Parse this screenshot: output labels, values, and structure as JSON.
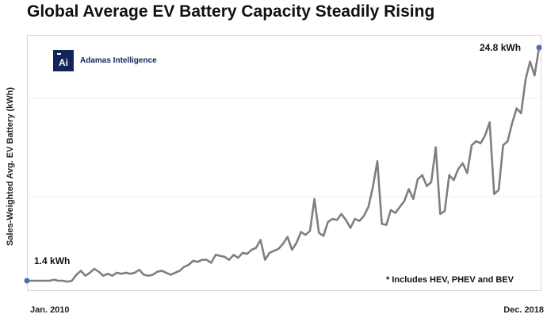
{
  "chart_data": {
    "type": "line",
    "title": "Global Average EV Battery Capacity Steadily Rising",
    "ylabel": "Sales-Weighted Avg. EV Battery (kWh)",
    "xlabel": "",
    "x_tick_labels": [
      "Jan. 2010",
      "Dec. 2018"
    ],
    "ylim": [
      0,
      26
    ],
    "grid": true,
    "annotations": {
      "start": "1.4 kWh",
      "end": "24.8 kWh",
      "note": "* Includes HEV, PHEV and BEV"
    },
    "series": [
      {
        "values": [
          1.4,
          1.4,
          1.4,
          1.4,
          1.4,
          1.4,
          1.5,
          1.4,
          1.4,
          1.3,
          1.4,
          2.0,
          2.4,
          1.9,
          2.2,
          2.6,
          2.3,
          1.9,
          2.1,
          1.9,
          2.2,
          2.1,
          2.2,
          2.1,
          2.2,
          2.5,
          2.0,
          1.9,
          2.0,
          2.3,
          2.4,
          2.2,
          2.0,
          2.2,
          2.4,
          2.8,
          3.0,
          3.4,
          3.3,
          3.5,
          3.5,
          3.2,
          4.0,
          3.9,
          3.8,
          3.5,
          4.0,
          3.7,
          4.2,
          4.1,
          4.5,
          4.7,
          5.5,
          3.5,
          4.2,
          4.4,
          4.6,
          5.1,
          5.8,
          4.5,
          5.2,
          6.3,
          6.0,
          6.4,
          9.6,
          6.2,
          5.9,
          7.3,
          7.6,
          7.5,
          8.1,
          7.5,
          6.7,
          7.6,
          7.4,
          7.9,
          8.8,
          10.8,
          13.4,
          7.1,
          7.0,
          8.5,
          8.2,
          8.8,
          9.4,
          10.6,
          9.6,
          11.6,
          12.0,
          10.9,
          11.3,
          14.8,
          8.1,
          8.4,
          12.0,
          11.5,
          12.6,
          13.2,
          12.2,
          15.0,
          15.4,
          15.2,
          16.0,
          17.3,
          10.1,
          10.5,
          15.0,
          15.4,
          17.2,
          18.7,
          18.2,
          21.6,
          23.4,
          22.0,
          24.8
        ]
      }
    ]
  }
}
